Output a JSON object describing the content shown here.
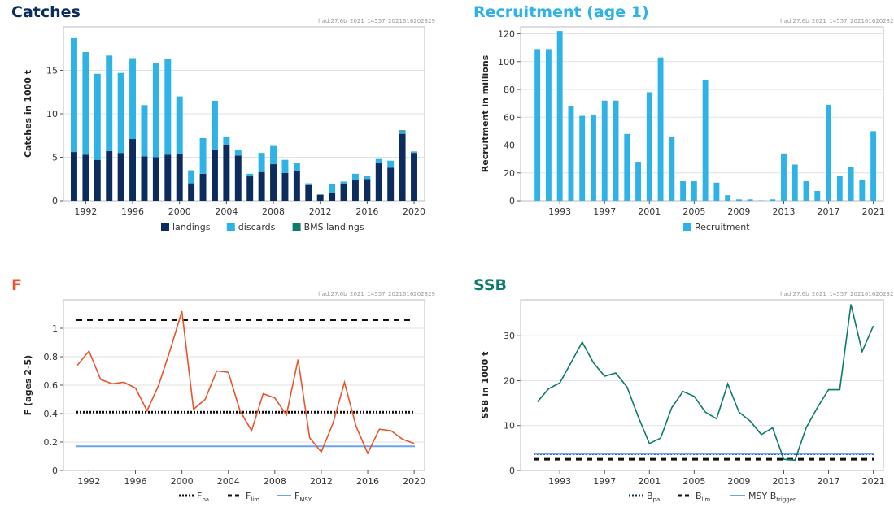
{
  "chart_data": [
    {
      "type": "bar",
      "stacked": true,
      "title": "Catches",
      "source_id": "had.27.6b_2021_14557_2021616202329",
      "xlabel": "",
      "ylabel": "Catches in 1000 t",
      "ylim": [
        0,
        20
      ],
      "yticks": [
        0,
        5,
        10,
        15
      ],
      "xticks": [
        1992,
        1996,
        2000,
        2004,
        2008,
        2012,
        2016,
        2020
      ],
      "grid": true,
      "legend_position": "bottom",
      "colors": {
        "landings": "#0b2c5c",
        "discards": "#2fb2e6",
        "BMS landings": "#0d7a6b"
      },
      "categories": [
        1991,
        1992,
        1993,
        1994,
        1995,
        1996,
        1997,
        1998,
        1999,
        2000,
        2001,
        2002,
        2003,
        2004,
        2005,
        2006,
        2007,
        2008,
        2009,
        2010,
        2011,
        2012,
        2013,
        2014,
        2015,
        2016,
        2017,
        2018,
        2019,
        2020
      ],
      "series": [
        {
          "name": "landings",
          "values": [
            5.6,
            5.3,
            4.7,
            5.7,
            5.5,
            7.1,
            5.1,
            5.0,
            5.3,
            5.4,
            2.0,
            3.1,
            5.9,
            6.4,
            5.2,
            2.8,
            3.3,
            4.2,
            3.2,
            3.4,
            1.8,
            0.7,
            0.9,
            1.9,
            2.4,
            2.5,
            4.3,
            3.8,
            7.7,
            5.5
          ]
        },
        {
          "name": "discards",
          "values": [
            13.1,
            11.8,
            9.9,
            11.0,
            9.2,
            9.3,
            5.9,
            10.8,
            11.0,
            6.6,
            1.5,
            4.1,
            5.6,
            0.9,
            0.6,
            0.3,
            2.2,
            2.1,
            1.5,
            0.9,
            0.2,
            0.0,
            1.0,
            0.3,
            0.7,
            0.4,
            0.5,
            0.8,
            0.3,
            0.1
          ]
        },
        {
          "name": "BMS landings",
          "values": [
            0,
            0,
            0,
            0,
            0,
            0,
            0,
            0,
            0,
            0,
            0,
            0,
            0,
            0,
            0,
            0,
            0,
            0,
            0,
            0,
            0,
            0,
            0,
            0,
            0,
            0,
            0,
            0,
            0.1,
            0.05
          ]
        }
      ]
    },
    {
      "type": "bar",
      "title": "Recruitment (age 1)",
      "source_id": "had.27.6b_2021_14557_2021616202329",
      "xlabel": "",
      "ylabel": "Recruitment in millions",
      "ylim": [
        0,
        125
      ],
      "yticks": [
        0,
        20,
        40,
        60,
        80,
        100,
        120
      ],
      "xticks": [
        1993,
        1997,
        2001,
        2005,
        2009,
        2013,
        2017,
        2021
      ],
      "grid": true,
      "legend_position": "bottom",
      "colors": {
        "Recruitment": "#2fb2e6"
      },
      "categories": [
        1991,
        1992,
        1993,
        1994,
        1995,
        1996,
        1997,
        1998,
        1999,
        2000,
        2001,
        2002,
        2003,
        2004,
        2005,
        2006,
        2007,
        2008,
        2009,
        2010,
        2011,
        2012,
        2013,
        2014,
        2015,
        2016,
        2017,
        2018,
        2019,
        2020,
        2021
      ],
      "series": [
        {
          "name": "Recruitment",
          "values": [
            109,
            109,
            122,
            68,
            61,
            62,
            72,
            72,
            48,
            28,
            78,
            103,
            46,
            14,
            14,
            87,
            13,
            4,
            1,
            1,
            0.3,
            1,
            34,
            26,
            14,
            7,
            69,
            18,
            24,
            15,
            50
          ]
        }
      ]
    },
    {
      "type": "line",
      "title": "F",
      "source_id": "had.27.6b_2021_14557_2021616202329",
      "xlabel": "",
      "ylabel": "F (ages 2-5)",
      "ylim": [
        0,
        1.2
      ],
      "yticks": [
        0,
        0.2,
        0.4,
        0.6,
        0.8,
        1.0
      ],
      "ytick_labels": [
        "0",
        "0.2",
        "0.4",
        "0.6",
        "0.8",
        "1"
      ],
      "xticks": [
        1992,
        1996,
        2000,
        2004,
        2008,
        2012,
        2016,
        2020
      ],
      "grid": true,
      "legend_position": "bottom",
      "colors": {
        "F": "#e8542b",
        "Fpa": "#111111",
        "Flim": "#111111",
        "FMSY": "#6aa3f0"
      },
      "x": [
        1991,
        1992,
        1993,
        1994,
        1995,
        1996,
        1997,
        1998,
        1999,
        2000,
        2001,
        2002,
        2003,
        2004,
        2005,
        2006,
        2007,
        2008,
        2009,
        2010,
        2011,
        2012,
        2013,
        2014,
        2015,
        2016,
        2017,
        2018,
        2019,
        2020
      ],
      "series": [
        {
          "name": "F",
          "values": [
            0.74,
            0.84,
            0.64,
            0.61,
            0.62,
            0.58,
            0.42,
            0.6,
            0.85,
            1.12,
            0.43,
            0.5,
            0.7,
            0.69,
            0.42,
            0.28,
            0.54,
            0.51,
            0.39,
            0.78,
            0.23,
            0.13,
            0.33,
            0.62,
            0.31,
            0.12,
            0.29,
            0.28,
            0.22,
            0.19
          ]
        }
      ],
      "reference_lines": [
        {
          "name": "Fpa",
          "label_main": "F",
          "label_sub": "pa",
          "value": 0.41,
          "style": "dotted"
        },
        {
          "name": "Flim",
          "label_main": "F",
          "label_sub": "lim",
          "value": 1.06,
          "style": "dashed"
        },
        {
          "name": "FMSY",
          "label_main": "F",
          "label_sub": "MSY",
          "value": 0.17,
          "style": "solid"
        }
      ]
    },
    {
      "type": "line",
      "title": "SSB",
      "source_id": "had.27.6b_2021_14557_2021616202329",
      "xlabel": "",
      "ylabel": "SSB in 1000 t",
      "ylim": [
        0,
        38
      ],
      "yticks": [
        0,
        10,
        20,
        30
      ],
      "xticks": [
        1993,
        1997,
        2001,
        2005,
        2009,
        2013,
        2017,
        2021
      ],
      "grid": true,
      "legend_position": "bottom",
      "colors": {
        "SSB": "#0d7a6b",
        "Bpa": "#0b2c5c",
        "Blim": "#111111",
        "MSY Btrigger": "#6aa3f0"
      },
      "x": [
        1991,
        1992,
        1993,
        1994,
        1995,
        1996,
        1997,
        1998,
        1999,
        2000,
        2001,
        2002,
        2003,
        2004,
        2005,
        2006,
        2007,
        2008,
        2009,
        2010,
        2011,
        2012,
        2013,
        2014,
        2015,
        2016,
        2017,
        2018,
        2019,
        2020,
        2021
      ],
      "series": [
        {
          "name": "SSB",
          "values": [
            15.3,
            18.2,
            19.5,
            24.0,
            28.6,
            24.0,
            21.0,
            21.7,
            18.6,
            12.0,
            6.0,
            7.2,
            14.0,
            17.6,
            16.5,
            13.0,
            11.5,
            19.3,
            13.0,
            11.0,
            8.0,
            9.5,
            2.5,
            2.3,
            9.5,
            14.0,
            18.0,
            18.0,
            37.0,
            26.5,
            32.2
          ]
        }
      ],
      "reference_lines": [
        {
          "name": "Bpa",
          "label_main": "B",
          "label_sub": "pa",
          "value": 3.7,
          "style": "dotted"
        },
        {
          "name": "Blim",
          "label_main": "B",
          "label_sub": "lim",
          "value": 2.5,
          "style": "dashed"
        },
        {
          "name": "MSY Btrigger",
          "label_main": "MSY B",
          "label_sub": "trigger",
          "value": 3.7,
          "style": "solid"
        }
      ]
    }
  ]
}
